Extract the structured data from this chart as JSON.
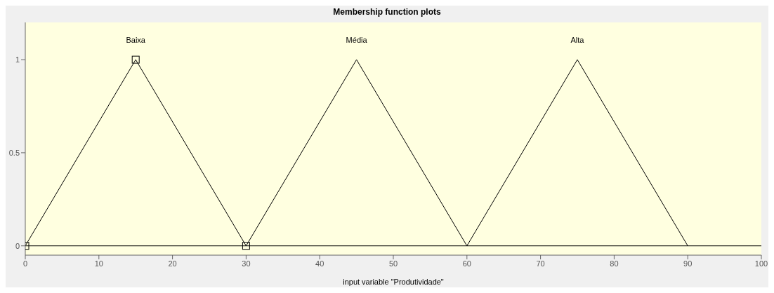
{
  "chart_data": {
    "type": "line",
    "title": "Membership function plots",
    "xlabel": "input variable \"Produtividade\"",
    "series": [
      {
        "name": "Baixa",
        "color": "#000000",
        "x": [
          0,
          15,
          30
        ],
        "values": [
          0,
          1,
          0
        ],
        "marker": "square"
      },
      {
        "name": "Média",
        "color": "#000000",
        "x": [
          30,
          45,
          60
        ],
        "values": [
          0,
          1,
          0
        ]
      },
      {
        "name": "Alta",
        "color": "#000000",
        "x": [
          60,
          75,
          90
        ],
        "values": [
          0,
          1,
          0
        ]
      }
    ],
    "ref_lines": [
      {
        "axis": "y",
        "value": 0,
        "color": "#000000"
      }
    ],
    "xlim": [
      0,
      100
    ],
    "xticks": [
      0,
      10,
      20,
      30,
      40,
      50,
      60,
      70,
      80,
      90,
      100
    ],
    "ylim": [
      -0.05,
      1.2
    ],
    "yticks": [
      0,
      0.5,
      1
    ],
    "grid": false,
    "line_style": "solid"
  }
}
